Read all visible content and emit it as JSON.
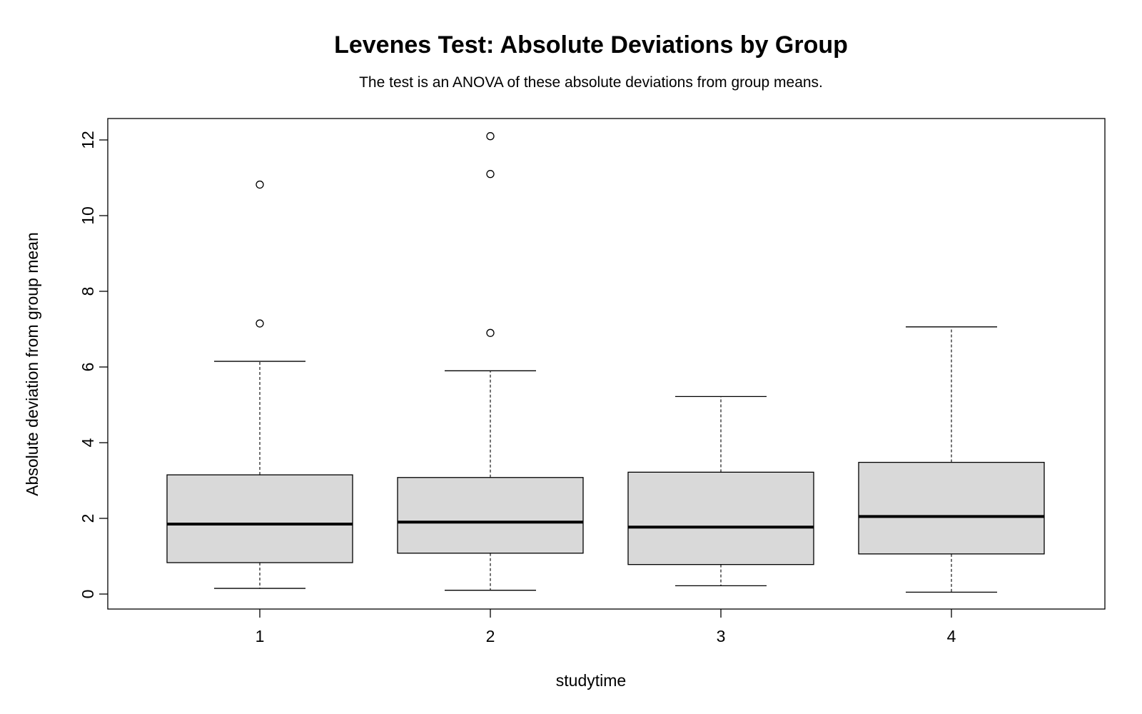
{
  "chart_data": {
    "type": "boxplot",
    "title": "Levenes Test: Absolute Deviations by Group",
    "subtitle": "The test is an ANOVA of these absolute deviations from group means.",
    "xlabel": "studytime",
    "ylabel": "Absolute deviation from group mean",
    "ylim": [
      -0.4,
      12.6
    ],
    "yticks": [
      0,
      2,
      4,
      6,
      8,
      10,
      12
    ],
    "categories": [
      "1",
      "2",
      "3",
      "4"
    ],
    "boxes": [
      {
        "group": "1",
        "whisker_low": 0.15,
        "q1": 0.83,
        "median": 1.85,
        "q3": 3.15,
        "whisker_high": 6.15,
        "outliers": [
          7.15,
          10.82
        ]
      },
      {
        "group": "2",
        "whisker_low": 0.1,
        "q1": 1.08,
        "median": 1.9,
        "q3": 3.08,
        "whisker_high": 5.9,
        "outliers": [
          6.9,
          11.1,
          12.1
        ]
      },
      {
        "group": "3",
        "whisker_low": 0.22,
        "q1": 0.78,
        "median": 1.77,
        "q3": 3.22,
        "whisker_high": 5.22,
        "outliers": []
      },
      {
        "group": "4",
        "whisker_low": 0.05,
        "q1": 1.06,
        "median": 2.05,
        "q3": 3.48,
        "whisker_high": 7.06,
        "outliers": []
      }
    ],
    "colors": {
      "box_fill": "#d9d9d9",
      "stroke": "#000000",
      "background": "#ffffff"
    },
    "grid": false,
    "legend": "none"
  }
}
